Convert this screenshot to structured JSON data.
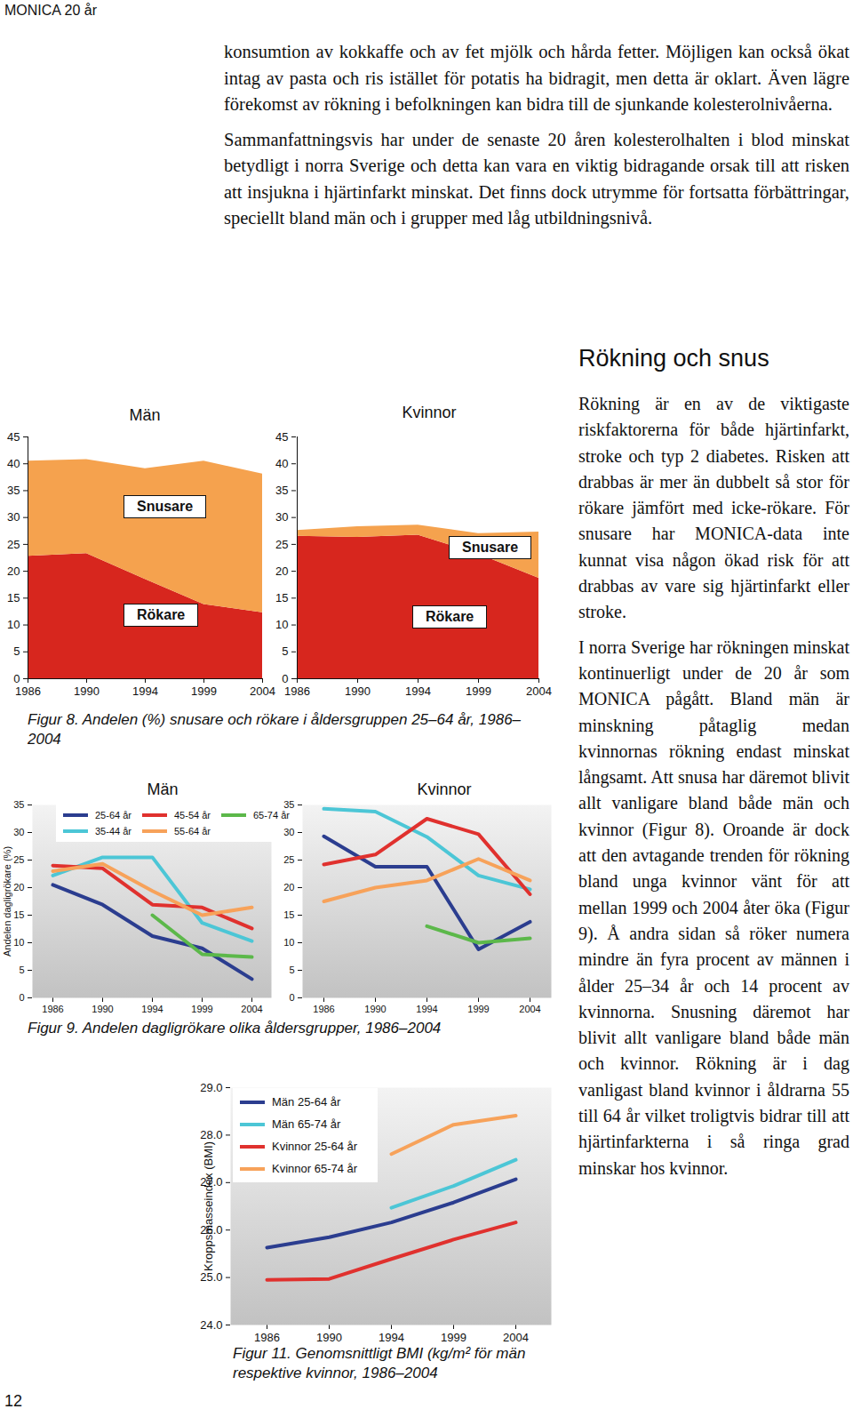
{
  "header": "MONICA 20 år",
  "page_number": "12",
  "body_paragraphs": [
    "konsumtion av kokkaffe och av fet mjölk och hårda fetter. Möjligen kan också ökat intag av pasta och ris istället för potatis ha bidragit, men detta är oklart. Även lägre förekomst av rökning i befolkningen kan bidra till de sjunkande kolesterolnivåerna.",
    "Sammanfattningsvis har under de senaste 20 åren kolesterolhalten i blod minskat betydligt i norra Sverige och detta kan vara en viktig bidragande orsak till att risken att insjukna i hjärtinfarkt minskat. Det finns dock utrymme för fortsatta förbättringar, speciellt bland män och i grupper med låg utbildningsnivå."
  ],
  "section": {
    "title": "Rökning och snus",
    "paragraphs": [
      "Rökning är en av de viktigaste riskfaktorerna för både hjärtinfarkt, stroke och typ 2 diabetes. Risken att drabbas är mer än dubbelt så stor för rökare jämfört med icke-rökare. För snusare har MONICA-data inte kunnat visa någon ökad risk för att drabbas av vare sig hjärtinfarkt eller stroke.",
      "I norra Sverige har rökningen minskat kontinuerligt under de 20 år som MONICA pågått. Bland män är minskning påtaglig medan kvinnornas rökning endast minskat långsamt. Att snusa har däremot blivit allt vanligare bland både män och kvinnor (Figur 8). Oroande är dock att den avtagande trenden för rökning bland unga kvinnor vänt för att mellan 1999 och 2004 åter öka (Figur 9). Å andra sidan så röker numera mindre än fyra procent av männen i ålder 25–34 år och 14 procent av kvinnorna. Snusning däremot har blivit allt vanligare bland både män och kvinnor. Rökning är i dag vanligast bland kvinnor i åldrarna 55 till 64 år vilket troligtvis bidrar till att hjärtinfarkterna i så ringa grad minskar hos kvinnor."
    ]
  },
  "figure_captions": [
    "Figur 8. Andelen (%) snusare och rökare i åldersgruppen 25–64 år, 1986–2004",
    "Figur 9. Andelen dagligrökare olika åldersgrupper, 1986–2004",
    "Figur 11. Genomsnittligt BMI (kg/m² för män respektive kvinnor, 1986–2004"
  ],
  "chart_data": [
    {
      "type": "area",
      "stacked": true,
      "title": "Män",
      "categories": [
        "1986",
        "1990",
        "1994",
        "1999",
        "2004"
      ],
      "series": [
        {
          "name": "Rökare",
          "color": "#d7261e",
          "values": [
            22.8,
            23.3,
            18.5,
            13.8,
            12.3
          ]
        },
        {
          "name": "Snusare",
          "color": "#f5a24e",
          "values": [
            17.7,
            17.5,
            20.6,
            26.7,
            25.8
          ]
        }
      ],
      "ylim": [
        0,
        45
      ],
      "yticks": [
        0,
        5,
        10,
        15,
        20,
        25,
        30,
        35,
        40,
        45
      ]
    },
    {
      "type": "area",
      "stacked": true,
      "title": "Kvinnor",
      "categories": [
        "1986",
        "1990",
        "1994",
        "1999",
        "2004"
      ],
      "series": [
        {
          "name": "Rökare",
          "color": "#d7261e",
          "values": [
            26.5,
            26.3,
            26.7,
            23.2,
            18.7
          ]
        },
        {
          "name": "Snusare",
          "color": "#f5a24e",
          "values": [
            1.1,
            2.0,
            1.9,
            3.8,
            8.6
          ]
        }
      ],
      "ylim": [
        0,
        45
      ],
      "yticks": [
        0,
        5,
        10,
        15,
        20,
        25,
        30,
        35,
        40,
        45
      ]
    },
    {
      "type": "line",
      "title": "Män",
      "y_label": "Andelen dagligrökare (%)",
      "legend": "top",
      "categories": [
        "1986",
        "1990",
        "1994",
        "1999",
        "2004"
      ],
      "series": [
        {
          "name": "25-64 år",
          "color": "#2b3d8f",
          "values": [
            20.5,
            16.9,
            11.2,
            9.0,
            3.4
          ]
        },
        {
          "name": "35-44 år",
          "color": "#4cc6d6",
          "values": [
            22.2,
            25.5,
            25.5,
            13.6,
            10.3
          ]
        },
        {
          "name": "45-54 år",
          "color": "#e0312e",
          "values": [
            24.0,
            23.5,
            16.9,
            16.4,
            12.6
          ]
        },
        {
          "name": "55-64 år",
          "color": "#f7a25a",
          "values": [
            23.0,
            24.3,
            19.4,
            15.0,
            16.4
          ]
        },
        {
          "name": "65-74 år",
          "color": "#5cb84a",
          "values": [
            null,
            null,
            15.0,
            7.9,
            7.4
          ]
        }
      ],
      "ylim": [
        0,
        35
      ],
      "yticks": [
        0,
        5,
        10,
        15,
        20,
        25,
        30,
        35
      ]
    },
    {
      "type": "line",
      "title": "Kvinnor",
      "categories": [
        "1986",
        "1990",
        "1994",
        "1999",
        "2004"
      ],
      "series": [
        {
          "name": "25-64 år",
          "color": "#2b3d8f",
          "values": [
            29.3,
            23.8,
            23.8,
            8.8,
            13.8
          ]
        },
        {
          "name": "35-44 år",
          "color": "#4cc6d6",
          "values": [
            34.3,
            33.8,
            29.2,
            22.2,
            19.7
          ]
        },
        {
          "name": "45-54 år",
          "color": "#e0312e",
          "values": [
            24.2,
            26.0,
            32.5,
            29.7,
            18.8
          ]
        },
        {
          "name": "55-64 år",
          "color": "#f7a25a",
          "values": [
            17.5,
            20.0,
            21.3,
            25.2,
            21.3
          ]
        },
        {
          "name": "65-74 år",
          "color": "#5cb84a",
          "values": [
            null,
            null,
            13.0,
            10.0,
            10.8
          ]
        }
      ],
      "ylim": [
        0,
        35
      ],
      "yticks": [
        0,
        5,
        10,
        15,
        20,
        25,
        30,
        35
      ]
    },
    {
      "type": "line",
      "y_label": "Kroppsmasseindex (BMI)",
      "legend": "top-left",
      "categories": [
        "1986",
        "1990",
        "1994",
        "1999",
        "2004"
      ],
      "series": [
        {
          "name": "Män 25-64 år",
          "color": "#2b3d8f",
          "values": [
            25.63,
            25.85,
            26.16,
            26.58,
            27.07
          ]
        },
        {
          "name": "Män 65-74 år",
          "color": "#4cc6d6",
          "values": [
            null,
            null,
            26.47,
            26.93,
            27.48
          ]
        },
        {
          "name": "Kvinnor 25-64 år",
          "color": "#e0312e",
          "values": [
            24.95,
            24.97,
            25.39,
            25.8,
            26.16
          ]
        },
        {
          "name": "Kvinnor 65-74 år",
          "color": "#f7a25a",
          "values": [
            null,
            null,
            27.6,
            28.22,
            28.41
          ]
        }
      ],
      "ylim": [
        24,
        29
      ],
      "yticks": [
        24,
        25,
        26,
        27,
        28,
        29
      ]
    }
  ]
}
